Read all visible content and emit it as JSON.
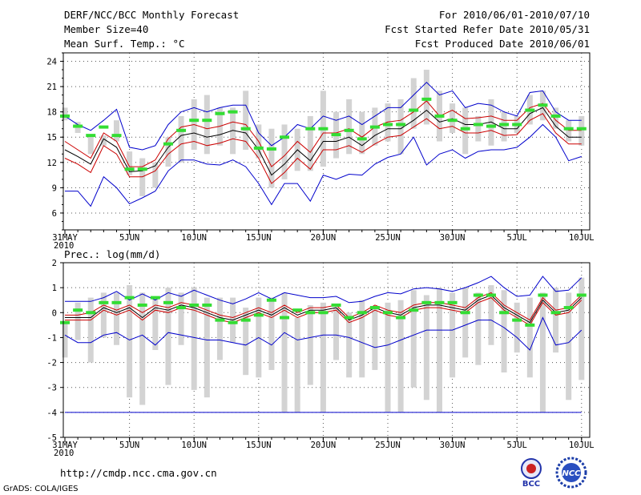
{
  "header": {
    "title": "DERF/NCC/BCC Monthly Forecast",
    "member": "Member Size=40",
    "variable": "Mean Surf. Temp.: °C",
    "period": "For 2010/06/01-2010/07/10",
    "started": "Fcst Started Refer Date 2010/05/31",
    "produced": "Fcst Produced Date 2010/06/01"
  },
  "footer": {
    "url": "http://cmdp.ncc.cma.gov.cn",
    "credit": "GrADS: COLA/IGES",
    "logo1_text": "BCC",
    "logo2_text": "NCC"
  },
  "colors": {
    "ensemble": "#000000",
    "spread": "#cc0000",
    "extreme": "#0000cc",
    "obs": "#33dd33",
    "box": "#d3d3d3",
    "grid": "#555555"
  },
  "chart_data": [
    {
      "type": "line",
      "title": "Mean Surf. Temp.: °C",
      "ylim": [
        4,
        25
      ],
      "yticks": [
        6,
        9,
        12,
        15,
        18,
        21,
        24
      ],
      "xlim": [
        0,
        41
      ],
      "xticks": [
        {
          "x": 0,
          "label": "31MAY",
          "sub": "2010"
        },
        {
          "x": 5,
          "label": "5JUN"
        },
        {
          "x": 10,
          "label": "10JUN"
        },
        {
          "x": 15,
          "label": "15JUN"
        },
        {
          "x": 20,
          "label": "20JUN"
        },
        {
          "x": 25,
          "label": "25JUN"
        },
        {
          "x": 30,
          "label": "30JUN"
        },
        {
          "x": 35,
          "label": "5JUL"
        },
        {
          "x": 40,
          "label": "10JUL"
        }
      ],
      "series": [
        {
          "name": "ensemble mean",
          "color": "#000000",
          "values": [
            13.5,
            12.7,
            11.8,
            14.8,
            13.8,
            10.9,
            11.0,
            11.6,
            13.8,
            15.2,
            15.5,
            15.0,
            15.3,
            15.8,
            15.5,
            13.5,
            10.5,
            11.8,
            13.5,
            12.2,
            14.5,
            14.5,
            15.0,
            14.0,
            15.2,
            16.0,
            16.0,
            17.0,
            18.2,
            16.8,
            17.2,
            16.5,
            16.5,
            16.8,
            16.0,
            16.0,
            17.8,
            18.5,
            16.3,
            15.0,
            15.0
          ]
        },
        {
          "name": "upper spread",
          "color": "#cc0000",
          "values": [
            14.5,
            13.5,
            12.5,
            15.5,
            14.5,
            11.5,
            11.5,
            12.3,
            14.8,
            16.2,
            16.5,
            16.0,
            16.3,
            16.8,
            16.5,
            14.5,
            11.5,
            12.8,
            14.5,
            13.2,
            15.5,
            15.5,
            16.0,
            15.0,
            16.2,
            16.8,
            17.0,
            18.0,
            19.3,
            17.5,
            18.2,
            17.2,
            17.3,
            17.5,
            17.0,
            17.0,
            18.5,
            19.0,
            17.0,
            15.8,
            15.8
          ]
        },
        {
          "name": "lower spread",
          "color": "#cc0000",
          "values": [
            12.5,
            11.8,
            10.8,
            14.0,
            13.0,
            10.3,
            10.3,
            11.0,
            13.0,
            14.2,
            14.5,
            14.0,
            14.3,
            14.8,
            14.5,
            12.5,
            9.5,
            10.8,
            12.5,
            11.2,
            13.5,
            13.5,
            14.0,
            13.2,
            14.2,
            15.0,
            15.2,
            16.2,
            17.2,
            16.0,
            16.3,
            15.5,
            15.5,
            15.8,
            15.2,
            15.3,
            17.0,
            17.8,
            15.5,
            14.2,
            14.2
          ]
        },
        {
          "name": "maximum",
          "color": "#0000cc",
          "values": [
            17.5,
            16.5,
            15.8,
            17.0,
            18.3,
            13.8,
            13.5,
            14.0,
            16.5,
            18.0,
            18.5,
            18.0,
            18.5,
            18.8,
            18.8,
            15.5,
            14.0,
            15.0,
            16.5,
            16.0,
            17.5,
            17.0,
            17.5,
            16.5,
            17.5,
            18.5,
            18.5,
            20.0,
            21.5,
            20.0,
            20.5,
            18.5,
            19.0,
            18.8,
            18.0,
            17.5,
            20.3,
            20.5,
            18.0,
            17.0,
            17.0
          ]
        },
        {
          "name": "minimum",
          "color": "#0000cc",
          "values": [
            8.6,
            8.6,
            6.8,
            10.3,
            9.0,
            7.1,
            7.8,
            8.6,
            11.0,
            12.3,
            12.3,
            11.8,
            11.7,
            12.3,
            11.5,
            9.5,
            7.0,
            9.5,
            9.5,
            7.4,
            10.5,
            10.0,
            10.6,
            10.5,
            11.8,
            12.6,
            13.0,
            15.0,
            11.7,
            13.0,
            13.5,
            12.5,
            13.3,
            13.5,
            13.5,
            13.8,
            15.0,
            16.5,
            15.0,
            12.2,
            12.7
          ]
        },
        {
          "name": "observed",
          "color": "#33dd33",
          "values": [
            17.5,
            16.3,
            15.2,
            16.2,
            15.2,
            11.2,
            11.2,
            null,
            14.2,
            15.8,
            17.0,
            17.0,
            17.8,
            18.0,
            16.0,
            13.7,
            13.6,
            15.0,
            null,
            16.0,
            16.0,
            15.3,
            15.8,
            14.8,
            16.2,
            16.5,
            16.5,
            18.2,
            19.5,
            17.5,
            17.0,
            16.0,
            16.5,
            16.3,
            16.5,
            16.5,
            18.2,
            18.8,
            17.5,
            16.0,
            16.0
          ]
        }
      ],
      "boxes": [
        [
          17.0,
          18.5
        ],
        [
          15.5,
          16.8
        ],
        [
          13.0,
          15.3
        ],
        [
          14.0,
          15.2
        ],
        [
          14.5,
          17.0
        ],
        [
          10.5,
          13.3
        ],
        [
          8.0,
          12.5
        ],
        [
          9.0,
          12.0
        ],
        [
          11.5,
          15.0
        ],
        [
          12.0,
          17.5
        ],
        [
          13.5,
          19.5
        ],
        [
          13.0,
          20.0
        ],
        [
          14.0,
          18.5
        ],
        [
          13.0,
          18.5
        ],
        [
          13.5,
          20.5
        ],
        [
          12.5,
          16.5
        ],
        [
          9.0,
          16.0
        ],
        [
          10.0,
          16.5
        ],
        [
          11.0,
          16.0
        ],
        [
          11.0,
          17.5
        ],
        [
          11.5,
          20.5
        ],
        [
          12.5,
          18.0
        ],
        [
          13.0,
          19.5
        ],
        [
          13.0,
          18.0
        ],
        [
          14.0,
          18.5
        ],
        [
          14.5,
          19.0
        ],
        [
          13.0,
          19.5
        ],
        [
          16.0,
          22.0
        ],
        [
          16.5,
          23.0
        ],
        [
          14.5,
          20.5
        ],
        [
          15.5,
          19.0
        ],
        [
          13.0,
          18.5
        ],
        [
          14.5,
          17.5
        ],
        [
          14.0,
          19.5
        ],
        [
          14.5,
          18.0
        ],
        [
          15.5,
          17.5
        ],
        [
          16.5,
          20.0
        ],
        [
          17.0,
          20.5
        ],
        [
          16.0,
          18.5
        ],
        [
          14.5,
          17.0
        ],
        [
          14.0,
          17.5
        ]
      ],
      "labels": {
        "xlabel": "",
        "ylabel": ""
      }
    },
    {
      "type": "line",
      "title": "Prec.: log(mm/d)",
      "ylim": [
        -5,
        2
      ],
      "yticks": [
        -5,
        -4,
        -3,
        -2,
        -1,
        0,
        1,
        2
      ],
      "xlim": [
        0,
        41
      ],
      "xticks": [
        {
          "x": 0,
          "label": "31MAY",
          "sub": "2010"
        },
        {
          "x": 5,
          "label": "5JUN"
        },
        {
          "x": 10,
          "label": "10JUN"
        },
        {
          "x": 15,
          "label": "15JUN"
        },
        {
          "x": 20,
          "label": "20JUN"
        },
        {
          "x": 25,
          "label": "25JUN"
        },
        {
          "x": 30,
          "label": "30JUN"
        },
        {
          "x": 35,
          "label": "5JUL"
        },
        {
          "x": 40,
          "label": "10JUL"
        }
      ],
      "series": [
        {
          "name": "ensemble mean",
          "color": "#000000",
          "values": [
            -0.2,
            -0.2,
            -0.2,
            0.2,
            0.0,
            0.2,
            -0.2,
            0.2,
            0.1,
            0.3,
            0.2,
            0.0,
            -0.2,
            -0.3,
            -0.1,
            0.1,
            -0.1,
            0.2,
            -0.1,
            0.1,
            0.1,
            0.2,
            -0.3,
            -0.1,
            0.2,
            0.0,
            -0.1,
            0.2,
            0.3,
            0.3,
            0.2,
            0.1,
            0.5,
            0.7,
            0.2,
            -0.1,
            -0.4,
            0.5,
            0.0,
            0.1,
            0.6
          ]
        },
        {
          "name": "upper spread",
          "color": "#cc0000",
          "values": [
            -0.1,
            -0.1,
            0.0,
            0.3,
            0.1,
            0.3,
            0.0,
            0.3,
            0.2,
            0.4,
            0.3,
            0.1,
            -0.1,
            -0.2,
            0.0,
            0.2,
            0.0,
            0.3,
            0.0,
            0.2,
            0.2,
            0.3,
            -0.2,
            0.0,
            0.3,
            0.1,
            0.0,
            0.3,
            0.4,
            0.4,
            0.3,
            0.2,
            0.6,
            0.8,
            0.3,
            0.0,
            -0.3,
            0.6,
            0.1,
            0.2,
            0.7
          ]
        },
        {
          "name": "lower spread",
          "color": "#cc0000",
          "values": [
            -0.3,
            -0.3,
            -0.3,
            0.1,
            -0.1,
            0.1,
            -0.3,
            0.1,
            0.0,
            0.2,
            0.1,
            -0.1,
            -0.3,
            -0.4,
            -0.2,
            0.0,
            -0.2,
            0.1,
            -0.2,
            0.0,
            0.0,
            0.1,
            -0.4,
            -0.2,
            0.1,
            -0.1,
            -0.2,
            0.1,
            0.2,
            0.2,
            0.1,
            0.0,
            0.4,
            0.6,
            0.1,
            -0.2,
            -0.5,
            0.4,
            -0.1,
            0.0,
            0.5
          ]
        },
        {
          "name": "maximum",
          "color": "#0000cc",
          "values": [
            0.45,
            0.45,
            0.45,
            0.6,
            0.85,
            0.5,
            0.75,
            0.5,
            0.8,
            0.65,
            0.9,
            0.7,
            0.5,
            0.35,
            0.55,
            0.8,
            0.55,
            0.8,
            0.7,
            0.6,
            0.6,
            0.65,
            0.4,
            0.45,
            0.65,
            0.8,
            0.75,
            0.95,
            1.0,
            0.95,
            0.85,
            1.0,
            1.2,
            1.45,
            1.0,
            0.65,
            0.7,
            1.45,
            0.85,
            0.9,
            1.4
          ]
        },
        {
          "name": "minimum",
          "color": "#0000cc",
          "values": [
            -0.9,
            -1.2,
            -1.2,
            -0.9,
            -0.8,
            -1.1,
            -0.9,
            -1.3,
            -0.8,
            -0.9,
            -1.0,
            -1.1,
            -1.1,
            -1.2,
            -1.3,
            -1.0,
            -1.3,
            -0.8,
            -1.1,
            -1.0,
            -0.9,
            -0.9,
            -1.0,
            -1.2,
            -1.4,
            -1.3,
            -1.1,
            -0.9,
            -0.7,
            -0.7,
            -0.7,
            -0.5,
            -0.3,
            -0.3,
            -0.6,
            -1.0,
            -1.5,
            -0.2,
            -1.3,
            -1.2,
            -0.7
          ]
        },
        {
          "name": "limit",
          "color": "#0000cc",
          "values": [
            -4,
            -4,
            -4,
            -4,
            -4,
            -4,
            -4,
            -4,
            -4,
            -4,
            -4,
            -4,
            -4,
            -4,
            -4,
            -4,
            -4,
            -4,
            -4,
            -4,
            -4,
            -4,
            -4,
            -4,
            -4,
            -4,
            -4,
            -4,
            -4,
            -4,
            -4,
            -4,
            -4,
            -4,
            -4,
            -4,
            -4,
            -4,
            -4,
            -4,
            -4
          ]
        },
        {
          "name": "observed",
          "color": "#33dd33",
          "values": [
            -0.4,
            0.1,
            0.0,
            0.4,
            0.4,
            0.6,
            0.3,
            0.6,
            0.4,
            0.2,
            0.3,
            0.3,
            -0.3,
            -0.4,
            -0.3,
            -0.1,
            0.5,
            -0.2,
            0.1,
            0.0,
            0.0,
            0.3,
            -0.2,
            0.0,
            0.2,
            0.0,
            -0.2,
            0.1,
            0.4,
            0.4,
            0.4,
            0.0,
            0.7,
            0.7,
            0.0,
            -0.3,
            -0.5,
            0.7,
            0.0,
            0.2,
            0.7
          ]
        }
      ],
      "boxes": [
        [
          -1.8,
          -0.4
        ],
        [
          -1.1,
          0.4
        ],
        [
          -2.0,
          0.6
        ],
        [
          -1.0,
          0.8
        ],
        [
          -1.3,
          0.8
        ],
        [
          -3.4,
          1.1
        ],
        [
          -3.7,
          0.8
        ],
        [
          -1.5,
          0.6
        ],
        [
          -2.9,
          1.0
        ],
        [
          -1.3,
          0.8
        ],
        [
          -3.1,
          1.0
        ],
        [
          -3.4,
          0.6
        ],
        [
          -1.9,
          0.6
        ],
        [
          -1.2,
          0.6
        ],
        [
          -2.5,
          0.2
        ],
        [
          -2.6,
          0.6
        ],
        [
          -2.3,
          0.6
        ],
        [
          -4.0,
          0.8
        ],
        [
          -4.0,
          -0.2
        ],
        [
          -2.9,
          0.3
        ],
        [
          -4.0,
          0.4
        ],
        [
          -1.9,
          0.2
        ],
        [
          -2.6,
          0.0
        ],
        [
          -2.6,
          0.5
        ],
        [
          -2.3,
          0.2
        ],
        [
          -4.0,
          0.4
        ],
        [
          -4.0,
          0.5
        ],
        [
          -3.0,
          0.9
        ],
        [
          -3.5,
          0.7
        ],
        [
          -4.0,
          1.0
        ],
        [
          -2.6,
          0.8
        ],
        [
          -1.8,
          1.0
        ],
        [
          -2.1,
          0.8
        ],
        [
          -1.3,
          1.1
        ],
        [
          -2.4,
          0.9
        ],
        [
          -1.6,
          0.4
        ],
        [
          -2.6,
          0.6
        ],
        [
          -4.0,
          0.8
        ],
        [
          -1.6,
          1.0
        ],
        [
          -3.5,
          0.8
        ],
        [
          -2.7,
          1.4
        ]
      ],
      "labels": {
        "xlabel": "",
        "ylabel": ""
      }
    }
  ]
}
